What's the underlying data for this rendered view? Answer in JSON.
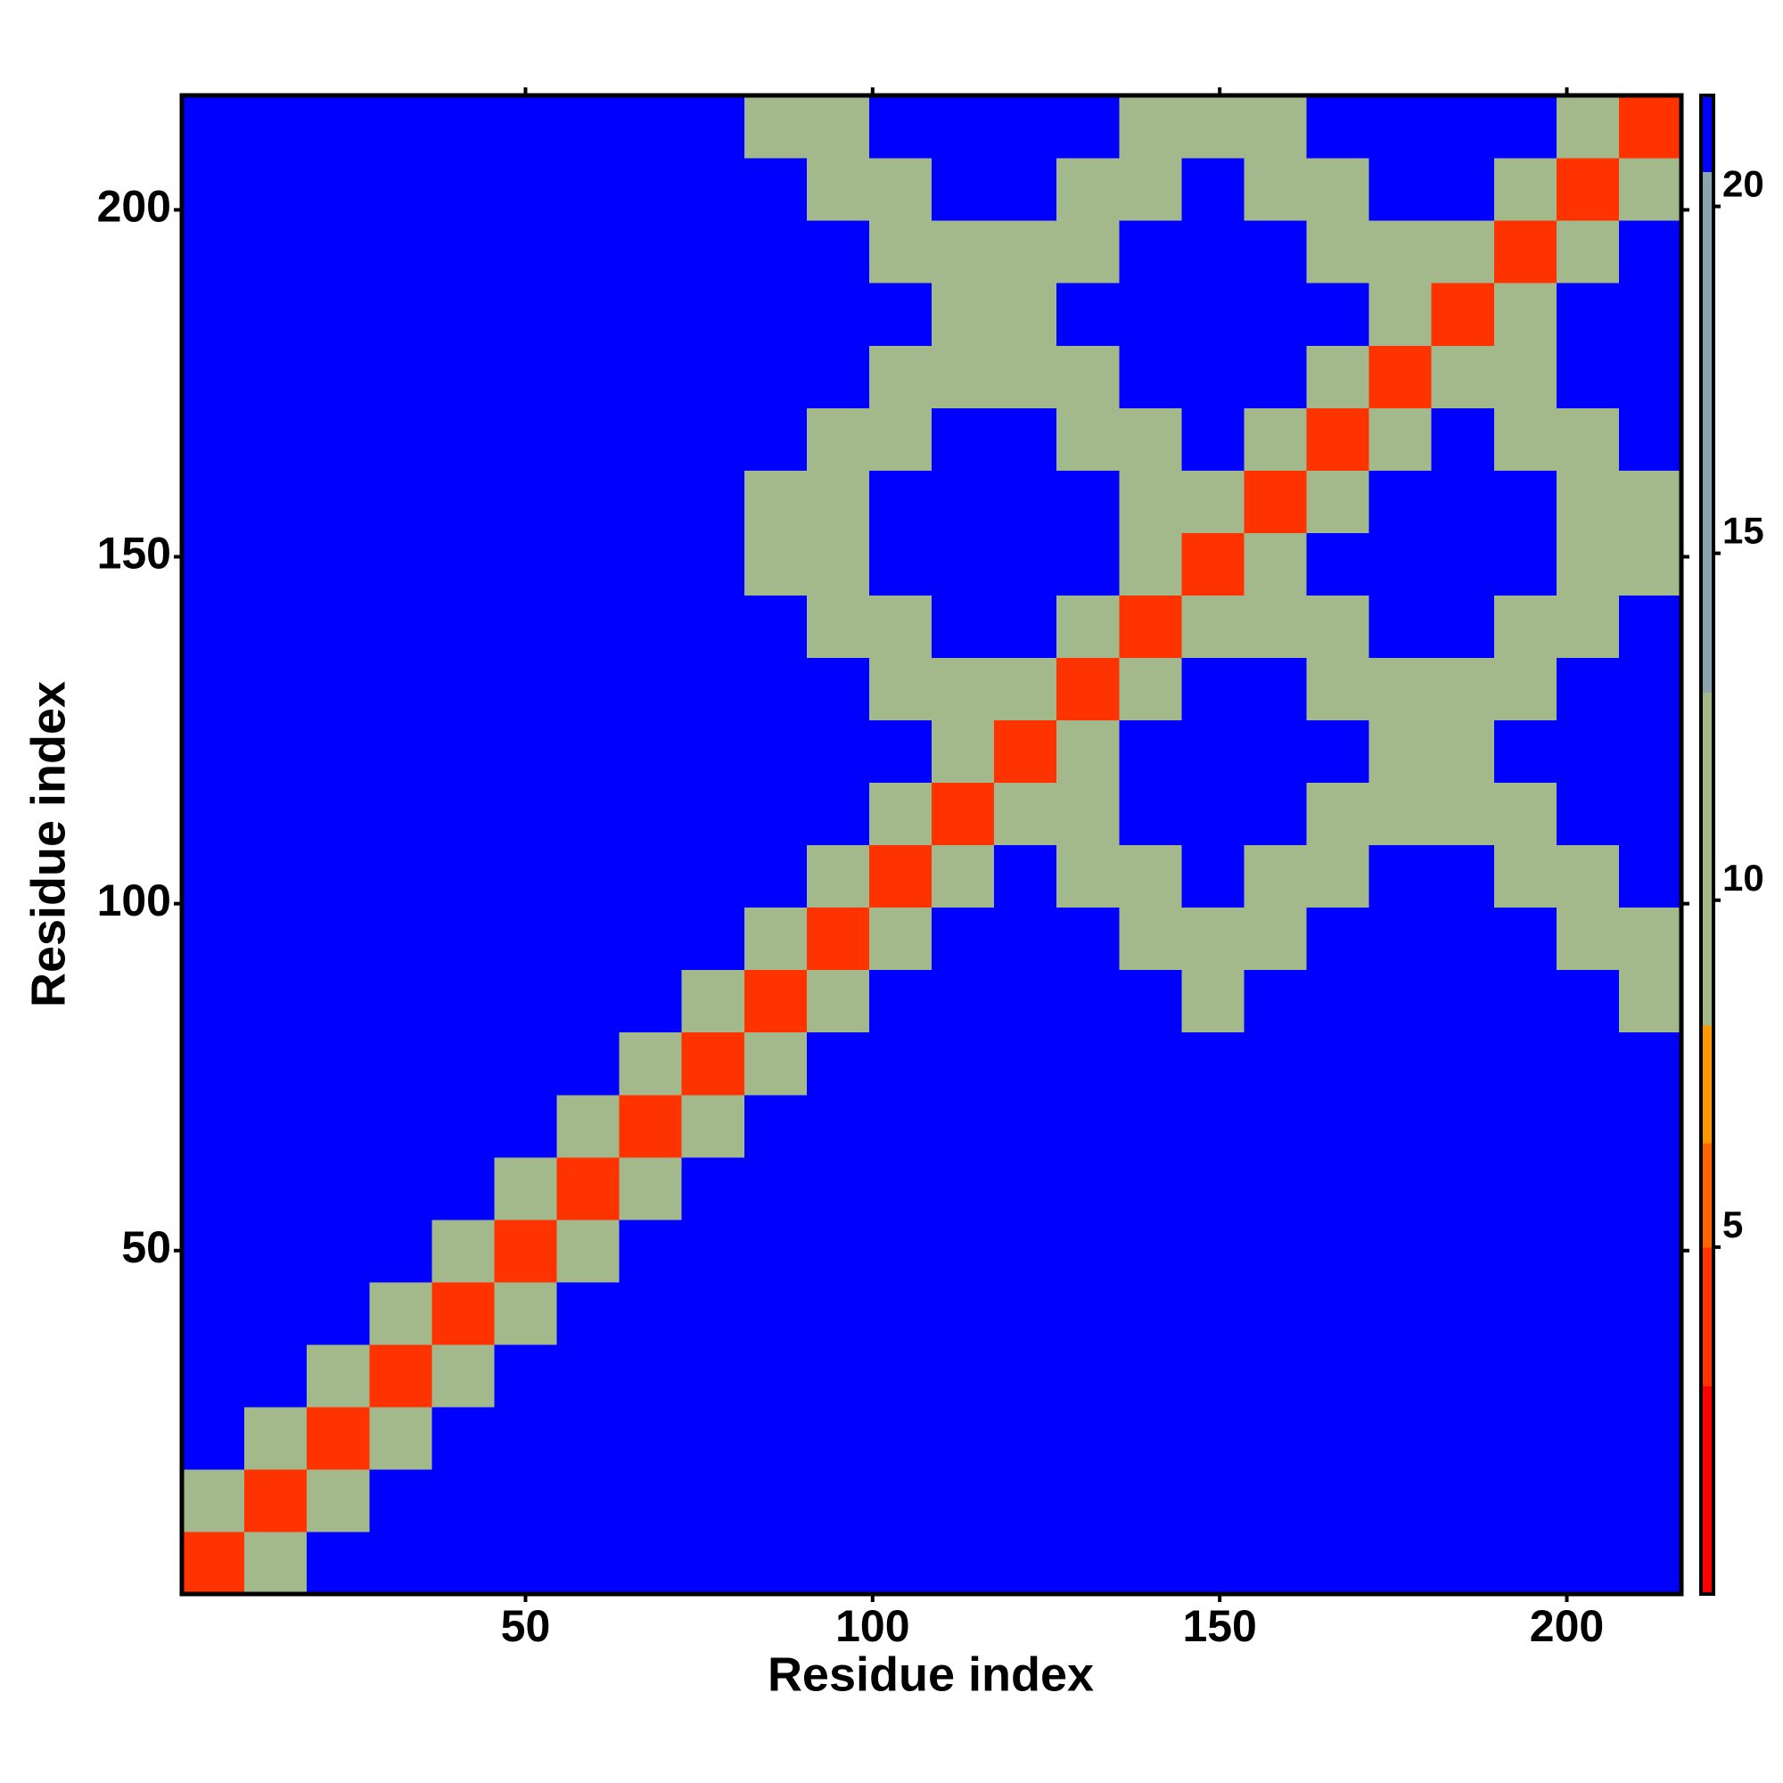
{
  "chart_data": {
    "type": "heatmap",
    "x_label": "Residue index",
    "y_label": "Residue index",
    "xlim": [
      0.5,
      216.5
    ],
    "ylim": [
      0.5,
      216.5
    ],
    "xticks": [
      50,
      100,
      150,
      200
    ],
    "yticks": [
      50,
      100,
      150,
      200
    ],
    "zlim": [
      0,
      21.6
    ],
    "zticks": [
      5,
      10,
      15,
      20
    ],
    "colorscale": [
      [
        0,
        "#ff0000"
      ],
      [
        3,
        "#ff3300"
      ],
      [
        5,
        "#ff6600"
      ],
      [
        6.5,
        "#ff9900"
      ],
      [
        8.2,
        "#a3b98c"
      ],
      [
        13,
        "#8ba5ad"
      ],
      [
        20.5,
        "#0000ff"
      ]
    ],
    "x": [
      5,
      14,
      23,
      32,
      41,
      50,
      59,
      68,
      77,
      86,
      95,
      104,
      113,
      122,
      131,
      140,
      149,
      158,
      167,
      176,
      185,
      194,
      203,
      212
    ],
    "y": [
      5,
      14,
      23,
      32,
      41,
      50,
      59,
      68,
      77,
      86,
      95,
      104,
      113,
      122,
      131,
      140,
      149,
      158,
      167,
      176,
      185,
      194,
      203,
      212
    ],
    "z": [
      [
        4,
        12,
        21,
        21,
        21,
        21,
        21,
        21,
        21,
        21,
        21,
        21,
        21,
        21,
        21,
        21,
        21,
        21,
        21,
        21,
        21,
        21,
        21,
        21
      ],
      [
        12,
        4,
        12,
        21,
        21,
        21,
        21,
        21,
        21,
        21,
        21,
        21,
        21,
        21,
        21,
        21,
        21,
        21,
        21,
        21,
        21,
        21,
        21,
        21
      ],
      [
        21,
        12,
        4,
        12,
        21,
        21,
        21,
        21,
        21,
        21,
        21,
        21,
        21,
        21,
        21,
        21,
        21,
        21,
        21,
        21,
        21,
        21,
        21,
        21
      ],
      [
        21,
        21,
        12,
        4,
        12,
        21,
        21,
        21,
        21,
        21,
        21,
        21,
        21,
        21,
        21,
        21,
        21,
        21,
        21,
        21,
        21,
        21,
        21,
        21
      ],
      [
        21,
        21,
        21,
        12,
        4,
        12,
        21,
        21,
        21,
        21,
        21,
        21,
        21,
        21,
        21,
        21,
        21,
        21,
        21,
        21,
        21,
        21,
        21,
        21
      ],
      [
        21,
        21,
        21,
        21,
        12,
        4,
        12,
        21,
        21,
        21,
        21,
        21,
        21,
        21,
        21,
        21,
        21,
        21,
        21,
        21,
        21,
        21,
        21,
        21
      ],
      [
        21,
        21,
        21,
        21,
        21,
        12,
        4,
        12,
        21,
        21,
        21,
        21,
        21,
        21,
        21,
        21,
        21,
        21,
        21,
        21,
        21,
        21,
        21,
        21
      ],
      [
        21,
        21,
        21,
        21,
        21,
        21,
        12,
        4,
        12,
        21,
        21,
        21,
        21,
        21,
        21,
        21,
        21,
        21,
        21,
        21,
        21,
        21,
        21,
        21
      ],
      [
        21,
        21,
        21,
        21,
        21,
        21,
        21,
        12,
        4,
        12,
        21,
        21,
        21,
        21,
        21,
        21,
        21,
        21,
        21,
        21,
        21,
        21,
        21,
        21
      ],
      [
        21,
        21,
        21,
        21,
        21,
        21,
        21,
        21,
        12,
        4,
        10,
        21,
        21,
        21,
        21,
        21,
        11,
        21,
        21,
        21,
        21,
        21,
        21,
        12
      ],
      [
        21,
        21,
        21,
        21,
        21,
        21,
        21,
        21,
        21,
        10,
        4,
        10,
        21,
        21,
        21,
        12,
        11,
        12,
        21,
        21,
        21,
        21,
        12,
        12
      ],
      [
        21,
        21,
        21,
        21,
        21,
        21,
        21,
        21,
        21,
        21,
        10,
        4,
        10,
        21,
        12,
        12,
        21,
        12,
        12,
        21,
        21,
        12,
        12,
        21
      ],
      [
        21,
        21,
        21,
        21,
        21,
        21,
        21,
        21,
        21,
        21,
        21,
        10,
        4,
        10,
        12,
        21,
        21,
        21,
        12,
        12,
        12,
        12,
        21,
        21
      ],
      [
        21,
        21,
        21,
        21,
        21,
        21,
        21,
        21,
        21,
        21,
        21,
        21,
        10,
        4,
        10,
        21,
        21,
        21,
        21,
        11,
        11,
        21,
        21,
        21
      ],
      [
        21,
        21,
        21,
        21,
        21,
        21,
        21,
        21,
        21,
        21,
        21,
        12,
        12,
        10,
        4,
        10,
        21,
        21,
        12,
        12,
        12,
        12,
        21,
        21
      ],
      [
        21,
        21,
        21,
        21,
        21,
        21,
        21,
        21,
        21,
        21,
        12,
        12,
        21,
        21,
        10,
        4,
        10,
        12,
        12,
        21,
        21,
        12,
        12,
        21
      ],
      [
        21,
        21,
        21,
        21,
        21,
        21,
        21,
        21,
        21,
        11,
        12,
        21,
        21,
        21,
        21,
        10,
        4,
        10,
        21,
        21,
        21,
        21,
        12,
        11
      ],
      [
        21,
        21,
        21,
        21,
        21,
        21,
        21,
        21,
        21,
        11,
        12,
        21,
        21,
        21,
        21,
        12,
        10,
        4,
        10,
        21,
        21,
        21,
        12,
        11
      ],
      [
        21,
        21,
        21,
        21,
        21,
        21,
        21,
        21,
        21,
        21,
        12,
        12,
        21,
        21,
        12,
        12,
        21,
        10,
        4,
        10,
        21,
        12,
        12,
        21
      ],
      [
        21,
        21,
        21,
        21,
        21,
        21,
        21,
        21,
        21,
        21,
        21,
        12,
        12,
        12,
        12,
        21,
        21,
        21,
        10,
        4,
        10,
        12,
        21,
        21
      ],
      [
        21,
        21,
        21,
        21,
        21,
        21,
        21,
        21,
        21,
        21,
        21,
        21,
        11,
        11,
        21,
        21,
        21,
        21,
        21,
        10,
        4,
        10,
        21,
        21
      ],
      [
        21,
        21,
        21,
        21,
        21,
        21,
        21,
        21,
        21,
        21,
        21,
        12,
        12,
        12,
        12,
        21,
        21,
        21,
        12,
        12,
        10,
        4,
        10,
        21
      ],
      [
        21,
        21,
        21,
        21,
        21,
        21,
        21,
        21,
        21,
        21,
        12,
        12,
        21,
        21,
        12,
        12,
        21,
        12,
        12,
        21,
        21,
        10,
        4,
        10
      ],
      [
        21,
        21,
        21,
        21,
        21,
        21,
        21,
        21,
        21,
        12,
        12,
        21,
        21,
        21,
        21,
        12,
        11,
        12,
        21,
        21,
        21,
        21,
        10,
        4
      ]
    ]
  }
}
